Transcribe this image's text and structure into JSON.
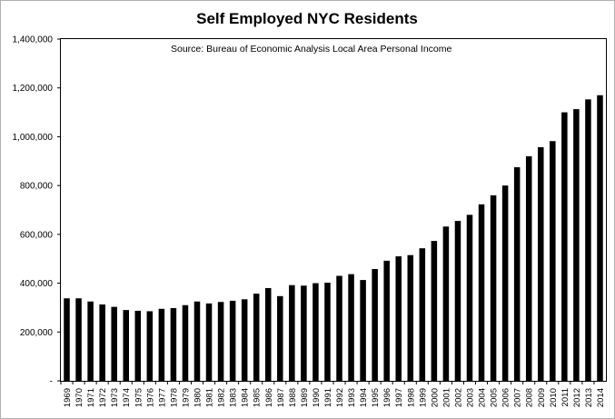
{
  "chart_data": {
    "type": "bar",
    "title": "Self Employed NYC Residents",
    "annotation": "Source:  Bureau of Economic Analysis Local Area Personal Income",
    "xlabel": "",
    "ylabel": "",
    "ylim": [
      0,
      1400000
    ],
    "yticks": [
      0,
      200000,
      400000,
      600000,
      800000,
      1000000,
      1200000,
      1400000
    ],
    "ytick_labels": [
      "-",
      "200,000",
      "400,000",
      "600,000",
      "800,000",
      "1,000,000",
      "1,200,000",
      "1,400,000"
    ],
    "grid": false,
    "legend": "none",
    "bar_color": "#000000",
    "categories": [
      "1969",
      "1970",
      "1971",
      "1972",
      "1973",
      "1974",
      "1975",
      "1976",
      "1977",
      "1978",
      "1979",
      "1980",
      "1981",
      "1982",
      "1983",
      "1984",
      "1985",
      "1986",
      "1987",
      "1988",
      "1989",
      "1990",
      "1991",
      "1992",
      "1993",
      "1994",
      "1995",
      "1996",
      "1997",
      "1998",
      "1999",
      "2000",
      "2001",
      "2002",
      "2003",
      "2004",
      "2005",
      "2006",
      "2007",
      "2008",
      "2009",
      "2010",
      "2011",
      "2012",
      "2013",
      "2014"
    ],
    "values": [
      338000,
      338000,
      325000,
      313000,
      303000,
      290000,
      287000,
      285000,
      295000,
      298000,
      310000,
      325000,
      317000,
      323000,
      328000,
      334000,
      357000,
      380000,
      347000,
      392000,
      390000,
      400000,
      402000,
      430000,
      437000,
      413000,
      458000,
      492000,
      510000,
      515000,
      543000,
      573000,
      632000,
      655000,
      680000,
      723000,
      760000,
      800000,
      875000,
      920000,
      957000,
      982000,
      1100000,
      1113000,
      1153000,
      1170000
    ]
  }
}
